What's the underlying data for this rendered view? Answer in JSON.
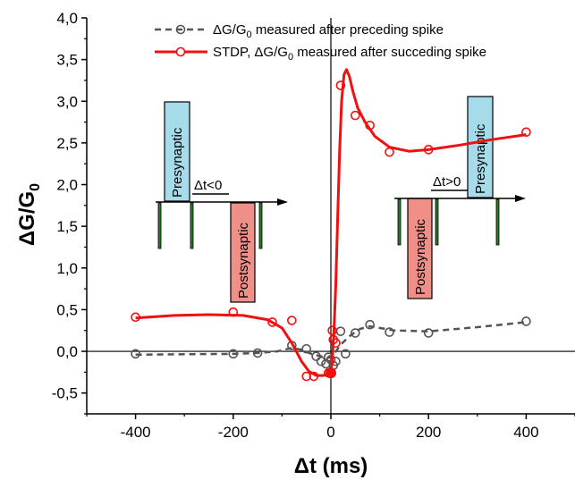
{
  "chart_data": {
    "type": "scatter",
    "xlabel": "Δt (ms)",
    "ylabel": "ΔG/G",
    "ylabel_sub": "0",
    "xlim": [
      -500,
      500
    ],
    "ylim": [
      -0.75,
      4.0
    ],
    "xticks": [
      -400,
      -200,
      0,
      200,
      400
    ],
    "xtick_labels": [
      "-400",
      "-200",
      "0",
      "200",
      "400"
    ],
    "yticks": [
      -0.5,
      0.0,
      0.5,
      1.0,
      1.5,
      2.0,
      2.5,
      3.0,
      3.5,
      4.0
    ],
    "ytick_labels": [
      "-0,5",
      "0,0",
      "0,5",
      "1,0",
      "1,5",
      "2,0",
      "2,5",
      "3,0",
      "3,5",
      "4,0"
    ],
    "grid": false,
    "legend_position": "top-right",
    "series": [
      {
        "legend_main": "ΔG/G",
        "legend_sub": "0",
        "legend_rest": " measured after preceding spike",
        "color": "#555555",
        "line_style": "dashed",
        "points": [
          [
            -400,
            -0.03
          ],
          [
            -200,
            -0.03
          ],
          [
            -150,
            -0.02
          ],
          [
            -80,
            0.07
          ],
          [
            -50,
            0.03
          ],
          [
            -30,
            -0.06
          ],
          [
            -20,
            -0.12
          ],
          [
            -10,
            -0.15
          ],
          [
            -5,
            -0.07
          ],
          [
            0,
            -0.1
          ],
          [
            5,
            -0.17
          ],
          [
            10,
            -0.12
          ],
          [
            20,
            0.24
          ],
          [
            30,
            -0.03
          ],
          [
            50,
            0.22
          ],
          [
            80,
            0.32
          ],
          [
            120,
            0.23
          ],
          [
            200,
            0.22
          ],
          [
            400,
            0.36
          ]
        ],
        "curve": [
          [
            -400,
            -0.04
          ],
          [
            -300,
            -0.035
          ],
          [
            -200,
            -0.03
          ],
          [
            -150,
            -0.02
          ],
          [
            -110,
            0.0
          ],
          [
            -80,
            0.04
          ],
          [
            -60,
            0.02
          ],
          [
            -40,
            -0.03
          ],
          [
            -20,
            -0.06
          ],
          [
            -8,
            -0.08
          ],
          [
            0,
            -0.07
          ],
          [
            8,
            -0.02
          ],
          [
            20,
            0.08
          ],
          [
            40,
            0.19
          ],
          [
            60,
            0.27
          ],
          [
            80,
            0.3
          ],
          [
            100,
            0.28
          ],
          [
            130,
            0.25
          ],
          [
            200,
            0.24
          ],
          [
            300,
            0.29
          ],
          [
            400,
            0.35
          ]
        ]
      },
      {
        "legend_main": "STDP, ΔG/G",
        "legend_sub": "0",
        "legend_rest": " measured after succeding spike",
        "color": "#ee1111",
        "line_style": "solid",
        "points": [
          [
            -400,
            0.41
          ],
          [
            -200,
            0.47
          ],
          [
            -120,
            0.35
          ],
          [
            -80,
            0.37
          ],
          [
            -50,
            -0.3
          ],
          [
            -35,
            -0.3
          ],
          [
            -5,
            -0.26
          ],
          [
            0,
            -0.25
          ],
          [
            3,
            0.25
          ],
          [
            5,
            0.14
          ],
          [
            10,
            0.1
          ],
          [
            20,
            3.19
          ],
          [
            50,
            2.83
          ],
          [
            80,
            2.71
          ],
          [
            120,
            2.39
          ],
          [
            200,
            2.42
          ],
          [
            400,
            2.63
          ]
        ],
        "curve": [
          [
            -400,
            0.4
          ],
          [
            -320,
            0.43
          ],
          [
            -250,
            0.44
          ],
          [
            -180,
            0.43
          ],
          [
            -130,
            0.38
          ],
          [
            -100,
            0.28
          ],
          [
            -80,
            0.1
          ],
          [
            -60,
            -0.12
          ],
          [
            -45,
            -0.24
          ],
          [
            -30,
            -0.29
          ],
          [
            -15,
            -0.29
          ],
          [
            -5,
            -0.27
          ],
          [
            0,
            -0.25
          ],
          [
            3,
            -0.1
          ],
          [
            6,
            0.2
          ],
          [
            10,
            0.8
          ],
          [
            14,
            1.6
          ],
          [
            18,
            2.4
          ],
          [
            22,
            3.0
          ],
          [
            27,
            3.32
          ],
          [
            32,
            3.38
          ],
          [
            38,
            3.3
          ],
          [
            45,
            3.12
          ],
          [
            55,
            2.92
          ],
          [
            70,
            2.75
          ],
          [
            90,
            2.58
          ],
          [
            120,
            2.45
          ],
          [
            160,
            2.4
          ],
          [
            200,
            2.42
          ],
          [
            260,
            2.47
          ],
          [
            330,
            2.54
          ],
          [
            400,
            2.6
          ]
        ]
      }
    ],
    "zero_marker": [
      0,
      -0.26
    ]
  },
  "inset_left": {
    "pre_label": "Presynaptic",
    "post_label": "Postsynaptic",
    "dt_label": "Δt<0"
  },
  "inset_right": {
    "pre_label": "Presynaptic",
    "post_label": "Postsynaptic",
    "dt_label": "Δt>0"
  },
  "colors": {
    "pre_box": "#a6dcea",
    "post_box": "#f08f88",
    "spike": "#2a7a2a"
  }
}
